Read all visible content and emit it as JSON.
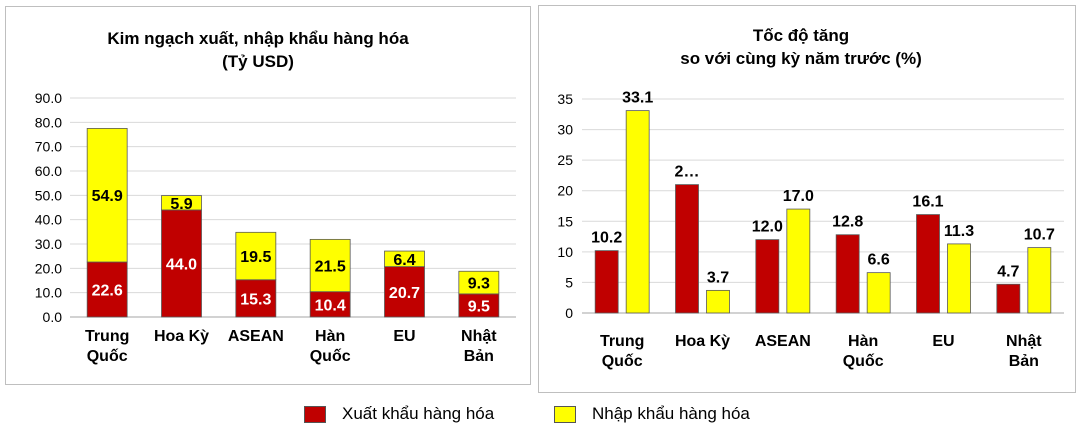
{
  "colors": {
    "export": "#c00000",
    "import": "#ffff00",
    "bar_border": "#595959",
    "grid": "#d9d9d9"
  },
  "legend": {
    "export_label": "Xuất khẩu hàng hóa",
    "import_label": "Nhập khẩu hàng hóa"
  },
  "chart_data": [
    {
      "type": "bar",
      "stacked": true,
      "title_lines": [
        "Kim ngạch xuất, nhập khẩu hàng hóa",
        "(Tỷ USD)"
      ],
      "categories": [
        [
          "Trung",
          "Quốc"
        ],
        [
          "Hoa Kỳ"
        ],
        [
          "ASEAN"
        ],
        [
          "Hàn",
          "Quốc"
        ],
        [
          "EU"
        ],
        [
          "Nhật",
          "Bản"
        ]
      ],
      "series": [
        {
          "name": "Xuất khẩu hàng hóa",
          "values": [
            22.6,
            44.0,
            15.3,
            10.4,
            20.7,
            9.5
          ],
          "labels": [
            "22.6",
            "44.0",
            "15.3",
            "10.4",
            "20.7",
            "9.5"
          ]
        },
        {
          "name": "Nhập khẩu hàng hóa",
          "values": [
            54.9,
            5.9,
            19.5,
            21.5,
            6.4,
            9.3
          ],
          "labels": [
            "54.9",
            "5.9",
            "19.5",
            "21.5",
            "6.4",
            "9.3"
          ]
        }
      ],
      "ylim": [
        0,
        90
      ],
      "yticks": [
        "0.0",
        "10.0",
        "20.0",
        "30.0",
        "40.0",
        "50.0",
        "60.0",
        "70.0",
        "80.0",
        "90.0"
      ],
      "grid": true
    },
    {
      "type": "bar",
      "stacked": false,
      "title_lines": [
        "Tốc độ tăng",
        "so với cùng kỳ năm trước (%)"
      ],
      "categories": [
        [
          "Trung",
          "Quốc"
        ],
        [
          "Hoa Kỳ"
        ],
        [
          "ASEAN"
        ],
        [
          "Hàn",
          "Quốc"
        ],
        [
          "EU"
        ],
        [
          "Nhật",
          "Bản"
        ]
      ],
      "series": [
        {
          "name": "Xuất khẩu hàng hóa",
          "values": [
            10.2,
            21.0,
            12.0,
            12.8,
            16.1,
            4.7
          ],
          "labels": [
            "10.2",
            "2…",
            "12.0",
            "12.8",
            "16.1",
            "4.7"
          ]
        },
        {
          "name": "Nhập khẩu hàng hóa",
          "values": [
            33.1,
            3.7,
            17.0,
            6.6,
            11.3,
            10.7
          ],
          "labels": [
            "33.1",
            "3.7",
            "17.0",
            "6.6",
            "11.3",
            "10.7"
          ]
        }
      ],
      "ylim": [
        0,
        35
      ],
      "yticks": [
        "0",
        "5",
        "10",
        "15",
        "20",
        "25",
        "30",
        "35"
      ],
      "grid": true
    }
  ]
}
